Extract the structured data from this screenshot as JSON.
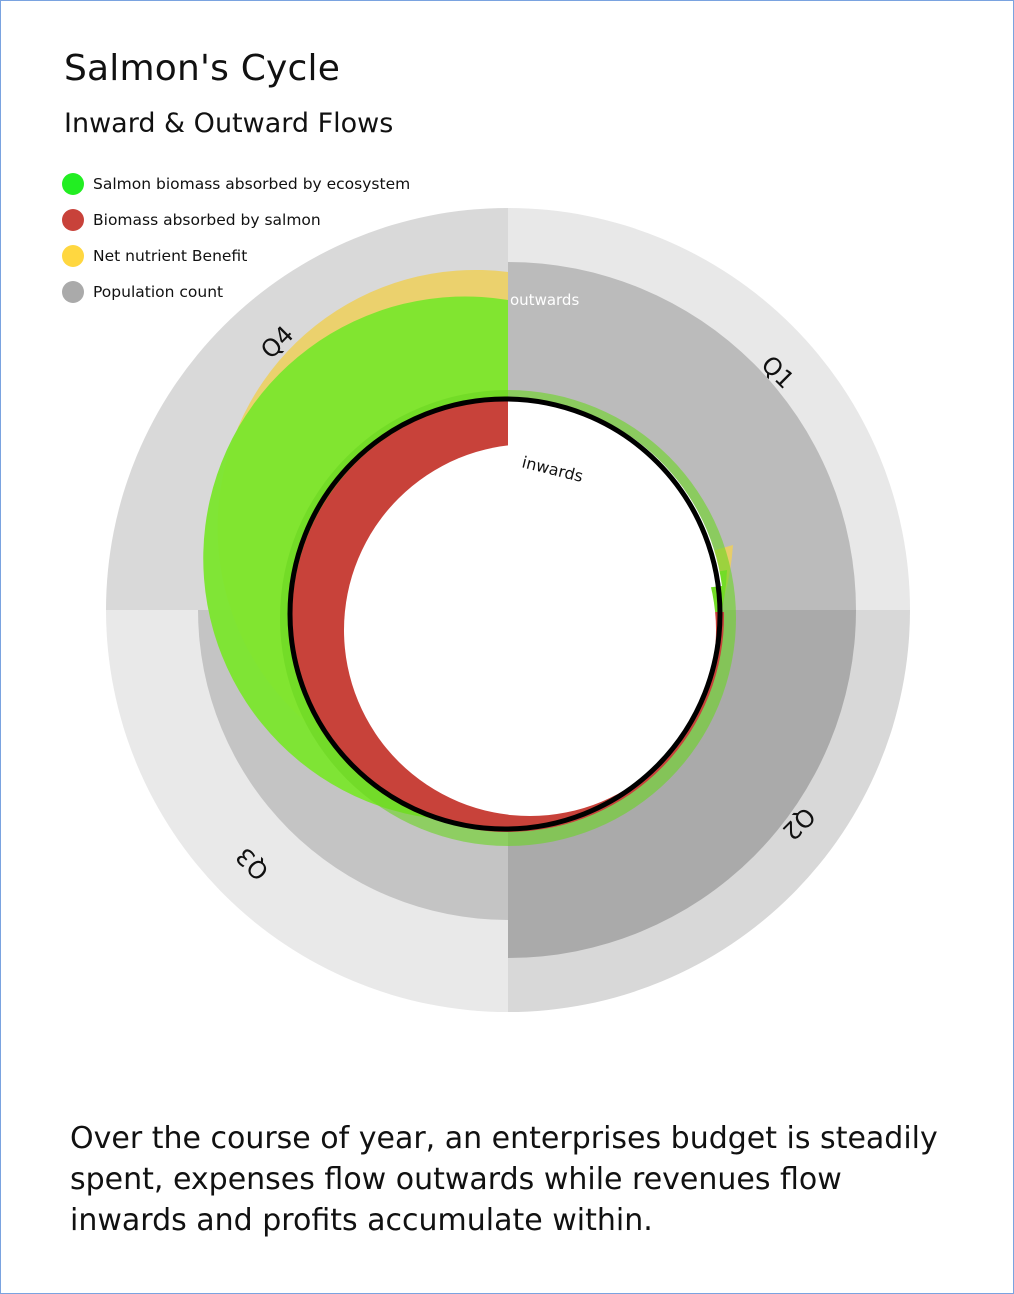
{
  "header": {
    "title": "Salmon's Cycle",
    "subtitle": "Inward & Outward Flows"
  },
  "legend": [
    {
      "label": "Salmon biomass absorbed by ecosystem",
      "color": "#22ee22"
    },
    {
      "label": "Biomass absorbed by salmon",
      "color": "#c8423a"
    },
    {
      "label": "Net nutrient Benefit",
      "color": "#ffd740"
    },
    {
      "label": "Population count",
      "color": "#aaaaaa"
    }
  ],
  "chart_data": {
    "type": "radial-flow",
    "quarters": [
      {
        "label": "Q1",
        "population": 0.86
      },
      {
        "label": "Q2",
        "population": 0.86
      },
      {
        "label": "Q3",
        "population": 0.7
      },
      {
        "label": "Q4",
        "population": 1.0
      }
    ],
    "series": [
      {
        "name": "Salmon biomass absorbed by ecosystem",
        "color": "#7be62d",
        "start_fraction": 0.25,
        "end_fraction": 1.0
      },
      {
        "name": "Biomass absorbed by salmon",
        "color": "#c8423a",
        "start_fraction": 0.25,
        "end_fraction": 1.0
      },
      {
        "name": "Net nutrient Benefit",
        "color": "#eccf60",
        "start_fraction": 0.25,
        "end_fraction": 1.0
      }
    ],
    "annotations": {
      "outwards": "outwards",
      "inwards": "inwards"
    }
  },
  "caption": "Over the course of year, an enterprises budget is steadily spent, expenses flow outwards while revenues flow inwards and profits accumulate within."
}
